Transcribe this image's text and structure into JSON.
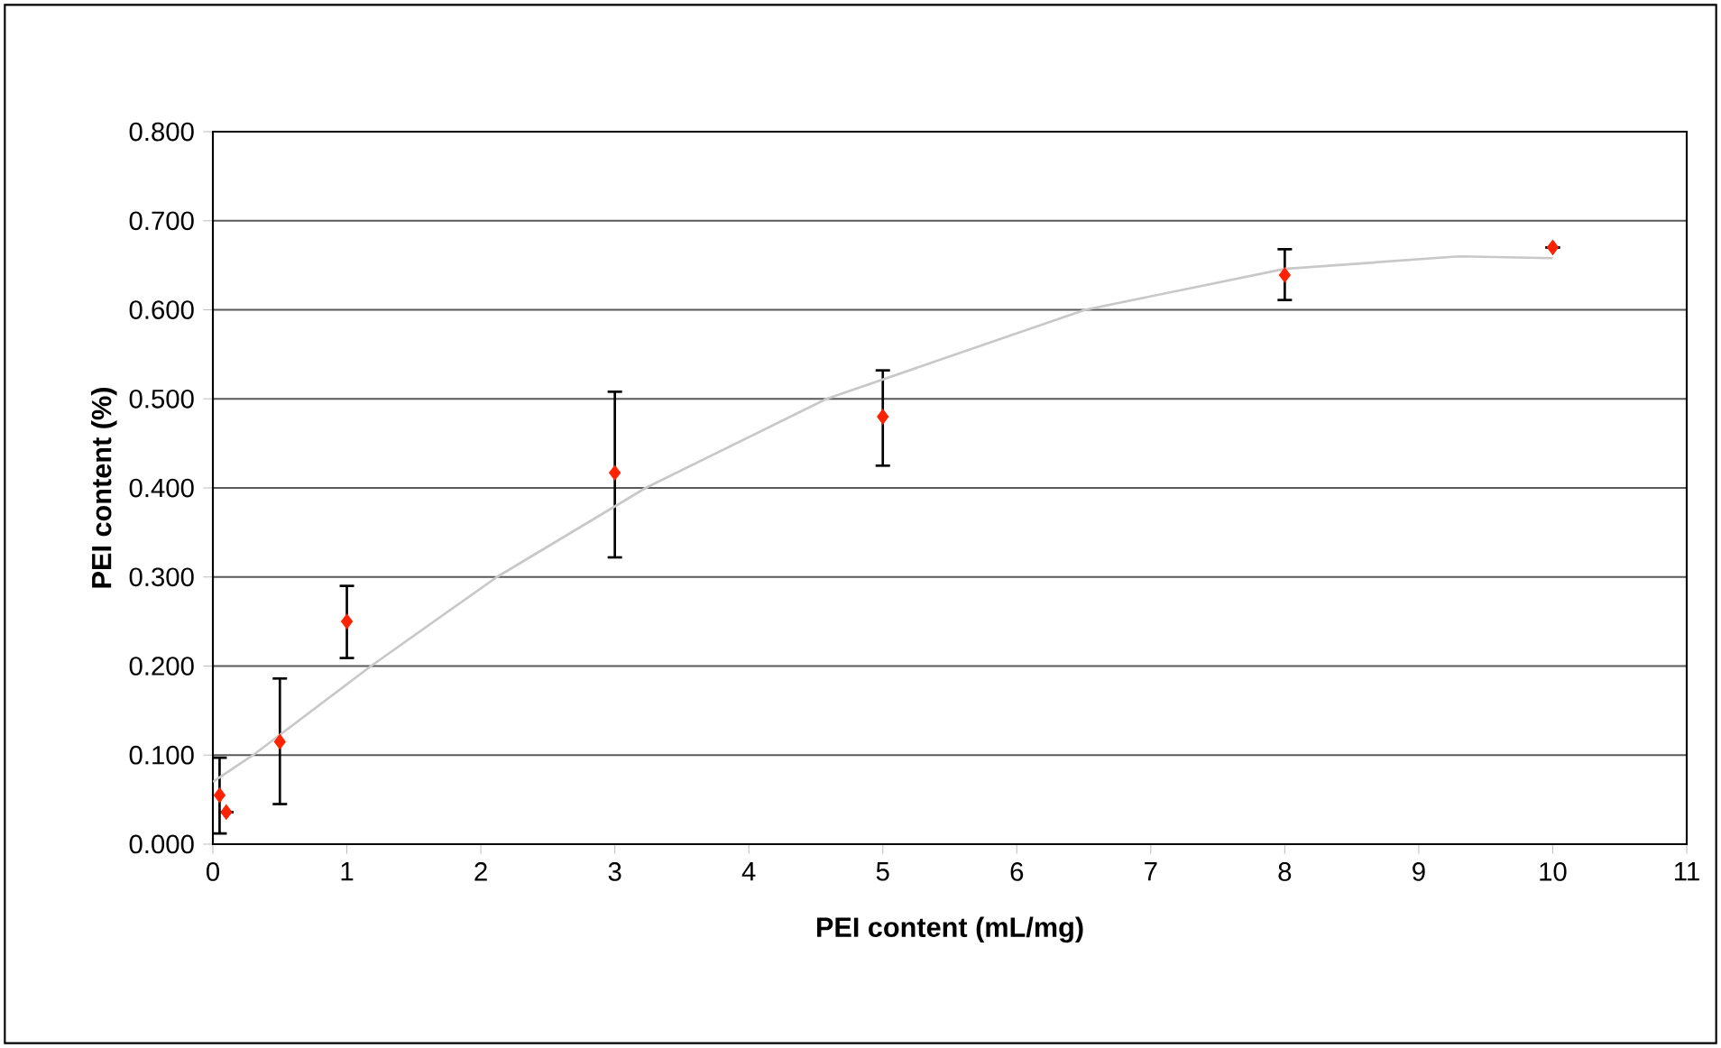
{
  "chart_data": {
    "type": "scatter",
    "xlabel": "PEI content (mL/mg)",
    "ylabel": "PEI content (%)",
    "xlim": [
      0,
      11
    ],
    "ylim": [
      0,
      0.8
    ],
    "xticks": [
      0,
      1,
      2,
      3,
      4,
      5,
      6,
      7,
      8,
      9,
      10,
      11
    ],
    "yticks": [
      {
        "value": 0,
        "label": "0.000"
      },
      {
        "value": 0.1,
        "label": "0.100"
      },
      {
        "value": 0.2,
        "label": "0.200"
      },
      {
        "value": 0.3,
        "label": "0.300"
      },
      {
        "value": 0.4,
        "label": "0.400"
      },
      {
        "value": 0.5,
        "label": "0.500"
      },
      {
        "value": 0.6,
        "label": "0.600"
      },
      {
        "value": 0.7,
        "label": "0.700"
      },
      {
        "value": 0.8,
        "label": "0.800"
      }
    ],
    "grid": "y",
    "series": [
      {
        "marker": "diamond",
        "color": "#ff2200",
        "x": [
          0.05,
          0.1,
          0.5,
          1,
          3,
          5,
          8,
          10
        ],
        "values": [
          0.055,
          0.036,
          0.115,
          0.25,
          0.417,
          0.48,
          0.639,
          0.67
        ],
        "errors": [
          [
            0.012,
            0.097
          ],
          null,
          [
            0.045,
            0.186
          ],
          [
            0.209,
            0.29
          ],
          [
            0.322,
            0.508
          ],
          [
            0.425,
            0.532
          ],
          [
            0.611,
            0.668
          ],
          null
        ]
      },
      {
        "type": "line",
        "marker": "none",
        "color": "#c8c8c8",
        "x": [
          0,
          0.3,
          1.18,
          2.12,
          3.23,
          4.58,
          6.51,
          8,
          9.3,
          10
        ],
        "values": [
          0.07,
          0.1,
          0.2,
          0.3,
          0.4,
          0.5,
          0.6,
          0.646,
          0.66,
          0.658
        ]
      }
    ]
  }
}
